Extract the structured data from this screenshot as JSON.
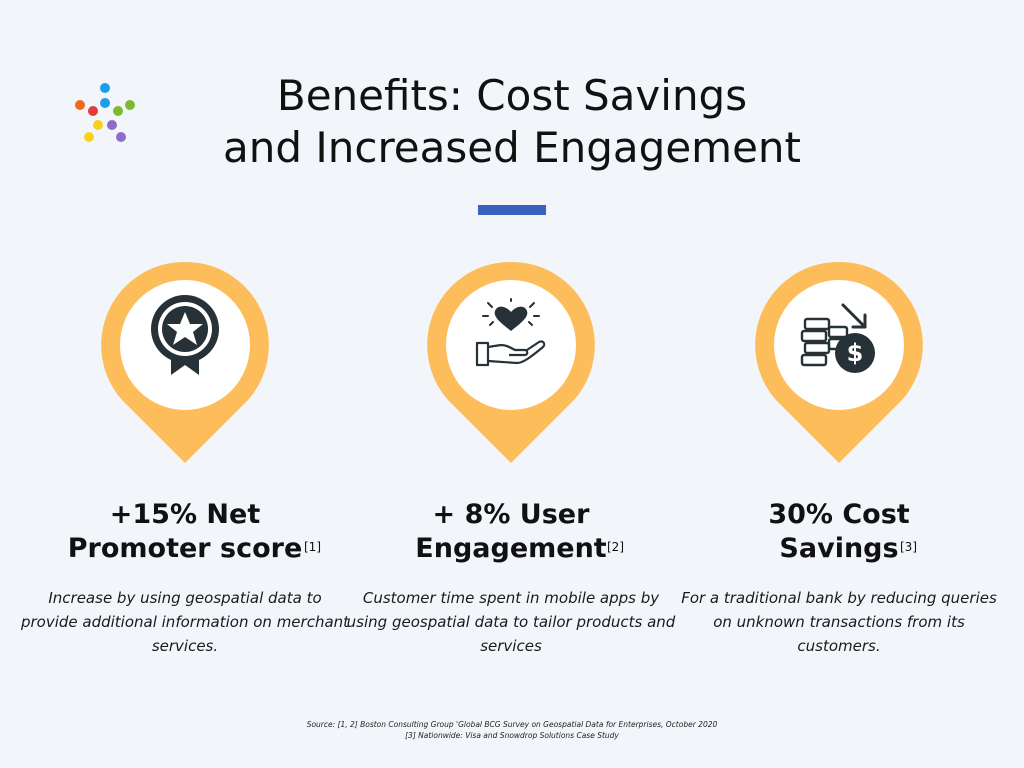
{
  "title": {
    "line1": "Benefits: Cost Savings",
    "line2": "and Increased Engagement"
  },
  "colors": {
    "background": "#f2f6fa",
    "pin": "#fdbd5b",
    "accent_bar": "#3a63c0",
    "icon": "#263238",
    "logo_dots": [
      "#1e9be9",
      "#f06a1d",
      "#e43a3a",
      "#f5a623",
      "#7cbb2f",
      "#f7d21d",
      "#8e6cc8",
      "#6a4fb3"
    ]
  },
  "cards": [
    {
      "icon": "award-ribbon-star-icon",
      "heading_line1": "+15% Net",
      "heading_line2": "Promoter score",
      "ref": "[1]",
      "description": "Increase by using geospatial data to provide additional information on merchant services."
    },
    {
      "icon": "hand-heart-icon",
      "heading_line1": "+ 8% User",
      "heading_line2": "Engagement",
      "ref": "[2]",
      "description": "Customer time spent in mobile apps by using geospatial data to tailor products and services"
    },
    {
      "icon": "coins-dollar-down-icon",
      "heading_line1": "30% Cost",
      "heading_line2": "Savings",
      "ref": "[3]",
      "description": "For a traditional bank by reducing queries on unknown transactions from its customers."
    }
  ],
  "source": {
    "line1": "Source: [1, 2] Boston Consulting Group 'Global BCG Survey on Geospatial Data for Enterprises, October 2020",
    "line2": "[3] Nationwide: Visa and Snowdrop Solutions Case Study"
  }
}
